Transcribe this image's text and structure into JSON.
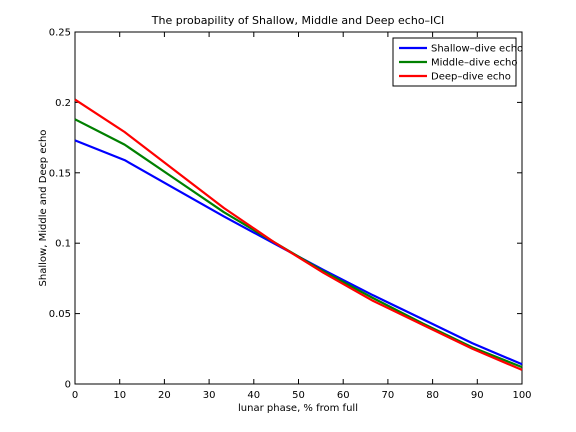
{
  "chart_data": {
    "type": "line",
    "title": "The probapility of Shallow, Middle and Deep echo–ICI",
    "xlabel": "lunar phase, % from full",
    "ylabel": "Shallow, Middle and Deep echo",
    "xlim": [
      0,
      100
    ],
    "ylim": [
      0,
      0.25
    ],
    "xticks": [
      0,
      10,
      20,
      30,
      40,
      50,
      60,
      70,
      80,
      90,
      100
    ],
    "xtick_labels": [
      "0",
      "10",
      "20",
      "30",
      "40",
      "50",
      "60",
      "70",
      "80",
      "90",
      "100"
    ],
    "yticks": [
      0,
      0.05,
      0.1,
      0.15,
      0.2,
      0.25
    ],
    "ytick_labels": [
      "0",
      "0.05",
      "0.1",
      "0.15",
      "0.2",
      "0.25"
    ],
    "grid": false,
    "legend_position": "top-right",
    "x": [
      0,
      11.1,
      22.2,
      33.3,
      44.4,
      55.6,
      66.7,
      77.8,
      88.9,
      100
    ],
    "series": [
      {
        "name": "Shallow–dive echo",
        "color": "#0000ff",
        "values": [
          0.173,
          0.159,
          0.139,
          0.119,
          0.1,
          0.081,
          0.063,
          0.046,
          0.029,
          0.014
        ]
      },
      {
        "name": "Middle–dive echo",
        "color": "#008000",
        "values": [
          0.188,
          0.17,
          0.146,
          0.122,
          0.101,
          0.08,
          0.061,
          0.043,
          0.026,
          0.012
        ]
      },
      {
        "name": "Deep–dive echo",
        "color": "#ff0000",
        "values": [
          0.202,
          0.179,
          0.152,
          0.125,
          0.101,
          0.079,
          0.059,
          0.042,
          0.025,
          0.01
        ]
      }
    ]
  }
}
